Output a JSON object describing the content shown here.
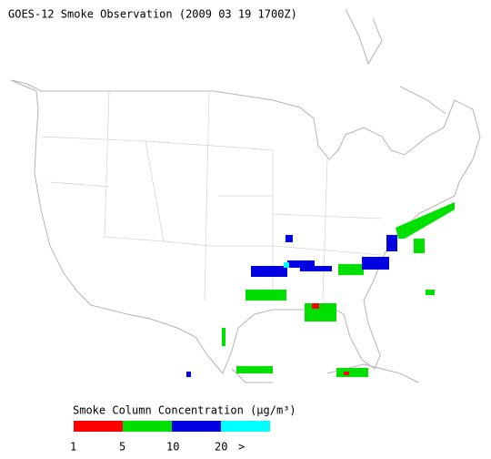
{
  "title": "GOES-12 Smoke Observation (2009 03 19  1700Z)",
  "legend": {
    "title": "Smoke Column Concentration (μg/m³)",
    "colors": [
      "#ff0000",
      "#00e000",
      "#0000e0",
      "#00ffff"
    ],
    "labels": [
      "1",
      "5",
      "10",
      "20",
      ">"
    ]
  }
}
